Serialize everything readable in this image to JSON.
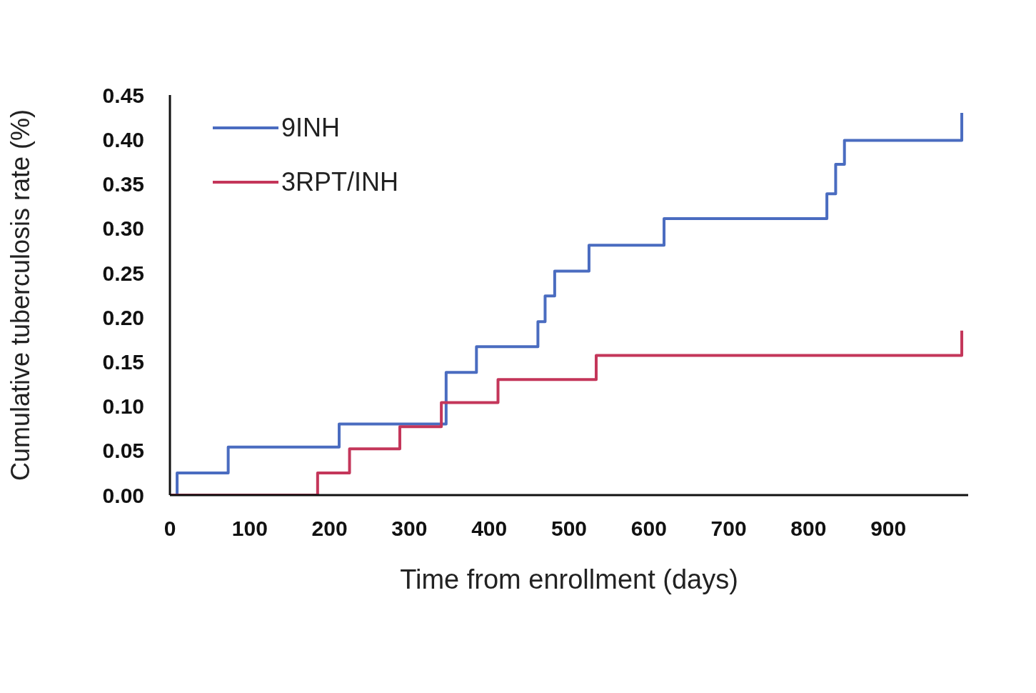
{
  "chart_data": {
    "type": "step",
    "xlabel": "Time from enrollment (days)",
    "ylabel": "Cumulative tuberculosis rate (%)",
    "xlim": [
      0,
      1000
    ],
    "xticks": [
      0,
      100,
      200,
      300,
      400,
      500,
      600,
      700,
      800,
      900
    ],
    "ylim": [
      0,
      0.45
    ],
    "yticks": [
      {
        "value": 0,
        "label": "0.00"
      },
      {
        "value": 0.05,
        "label": "0.05"
      },
      {
        "value": 0.1,
        "label": "0.10"
      },
      {
        "value": 0.15,
        "label": "0.15"
      },
      {
        "value": 0.2,
        "label": "0.20"
      },
      {
        "value": 0.25,
        "label": "0.25"
      },
      {
        "value": 0.3,
        "label": "0.30"
      },
      {
        "value": 0.35,
        "label": "0.35"
      },
      {
        "value": 0.4,
        "label": "0.40"
      },
      {
        "value": 0.45,
        "label": "0.45"
      }
    ],
    "legend": "top left",
    "grid": false,
    "marker": "none",
    "series": [
      {
        "name": "9INH",
        "color": "#4a6cc0",
        "x": [
          0,
          9,
          73,
          212,
          346,
          384,
          461,
          470,
          482,
          525,
          619,
          823,
          834,
          845,
          992
        ],
        "values": [
          0,
          0.025,
          0.054,
          0.08,
          0.138,
          0.167,
          0.195,
          0.224,
          0.252,
          0.281,
          0.311,
          0.339,
          0.372,
          0.399,
          0.43
        ]
      },
      {
        "name": "3RPT/INH",
        "color": "#c4365a",
        "x": [
          0,
          185,
          225,
          288,
          340,
          411,
          534,
          992
        ],
        "values": [
          0,
          0.025,
          0.052,
          0.077,
          0.104,
          0.13,
          0.157,
          0.185
        ]
      }
    ]
  }
}
